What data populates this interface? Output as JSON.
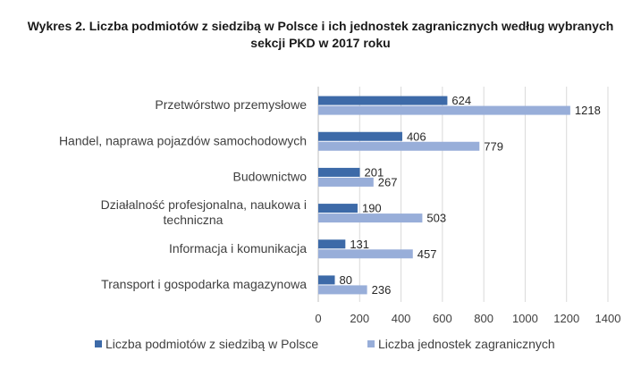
{
  "chart_data": {
    "type": "bar",
    "orientation": "horizontal",
    "title_lines": [
      "Wykres 2. Liczba podmiotów z siedzibą w Polsce i ich jednostek zagranicznych według wybranych",
      "sekcji PKD w 2017 roku"
    ],
    "categories": [
      [
        "Przetwórstwo przemysłowe"
      ],
      [
        "Handel, naprawa pojazdów samochodowych"
      ],
      [
        "Budownictwo"
      ],
      [
        "Działalność profesjonalna, naukowa i",
        "techniczna"
      ],
      [
        "Informacja i komunikacja"
      ],
      [
        "Transport i gospodarka magazynowa"
      ]
    ],
    "series": [
      {
        "name": "Liczba podmiotów z siedzibą w Polsce",
        "color": "#3d6aa8",
        "values": [
          624,
          406,
          201,
          190,
          131,
          80
        ]
      },
      {
        "name": "Liczba jednostek zagranicznych",
        "color": "#98aed9",
        "values": [
          1218,
          779,
          267,
          503,
          457,
          236
        ]
      }
    ],
    "xlim": [
      0,
      1400
    ],
    "xticks": [
      "0",
      "200",
      "400",
      "600",
      "800",
      "1000",
      "1200",
      "1400"
    ],
    "grid": true,
    "legend_position": "bottom",
    "gridline_color": "#d9d9d9"
  }
}
